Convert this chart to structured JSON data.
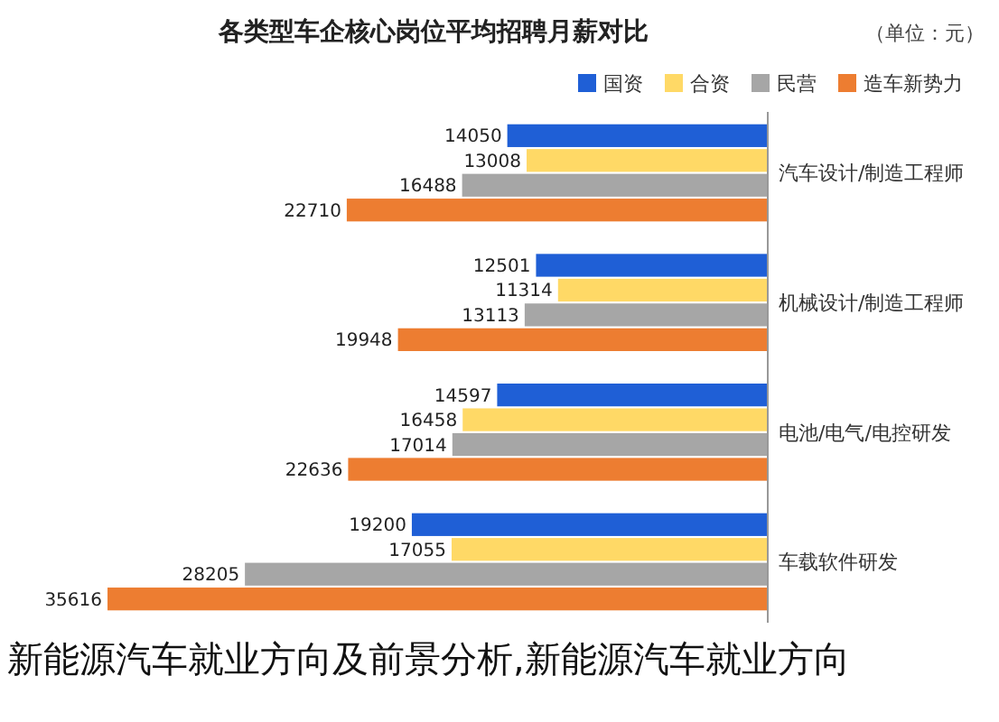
{
  "chart_data": {
    "type": "bar",
    "orientation": "horizontal",
    "title": "各类型车企核心岗位平均招聘月薪对比",
    "subtitle": "（单位：元）",
    "categories": [
      "汽车设计/制造工程师",
      "机械设计/制造工程师",
      "电池/电气/电控研发",
      "车载软件研发"
    ],
    "series": [
      {
        "name": "国资",
        "color": "#1f5fd6",
        "values": [
          14050,
          12501,
          14597,
          19200
        ]
      },
      {
        "name": "合资",
        "color": "#ffd966",
        "values": [
          13008,
          11314,
          16458,
          17055
        ]
      },
      {
        "name": "民营",
        "color": "#a6a6a6",
        "values": [
          16488,
          13113,
          17014,
          28205
        ]
      },
      {
        "name": "造车新势力",
        "color": "#ed7d31",
        "values": [
          22710,
          19948,
          22636,
          35616
        ]
      }
    ],
    "data_labels": true,
    "legend": "top right",
    "grid": false,
    "annotations": [
      "新能源汽车就业方向及前景分析,新能源汽车就业方向"
    ]
  }
}
